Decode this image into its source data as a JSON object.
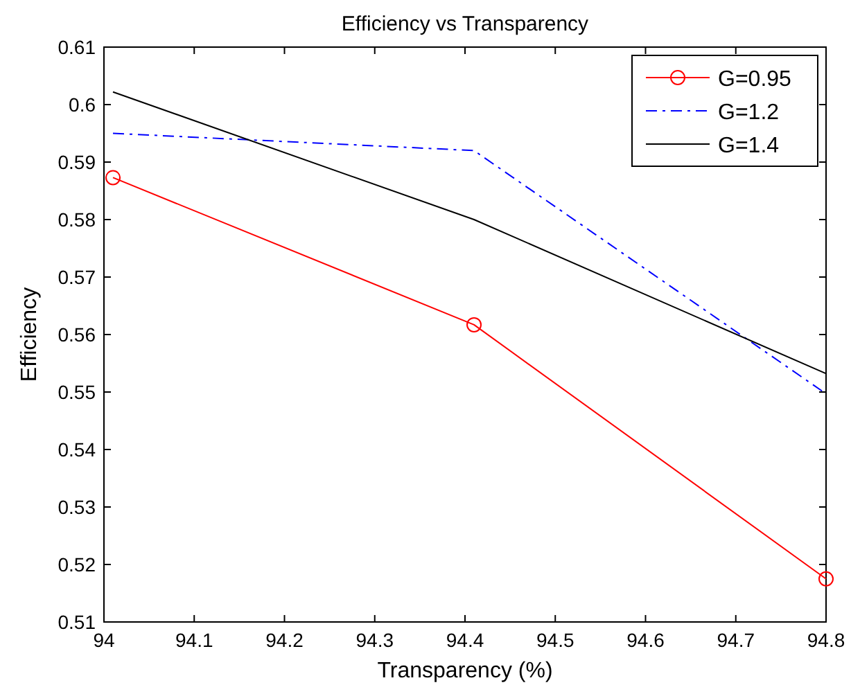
{
  "chart_data": {
    "type": "line",
    "title": "Efficiency vs Transparency",
    "xlabel": "Transparency (%)",
    "ylabel": "Efficiency",
    "xlim": [
      94,
      94.8
    ],
    "xticks": [
      94,
      94.1,
      94.2,
      94.3,
      94.4,
      94.5,
      94.6,
      94.7,
      94.8
    ],
    "ylim": [
      0.51,
      0.61
    ],
    "yticks": [
      0.51,
      0.52,
      0.53,
      0.54,
      0.55,
      0.56,
      0.57,
      0.58,
      0.59,
      0.6,
      0.61
    ],
    "grid": false,
    "legend": "top right",
    "series": [
      {
        "name": "G=0.95",
        "color": "#ff0000",
        "marker": "circle",
        "line_style": "solid",
        "x": [
          94.01,
          94.41,
          94.8
        ],
        "values": [
          0.5873,
          0.5617,
          0.5175
        ]
      },
      {
        "name": "G=1.2",
        "color": "#0000ff",
        "marker": "none",
        "line_style": "dashdot",
        "x": [
          94.01,
          94.41,
          94.8
        ],
        "values": [
          0.595,
          0.592,
          0.5497
        ]
      },
      {
        "name": "G=1.4",
        "color": "#000000",
        "marker": "none",
        "line_style": "solid",
        "x": [
          94.01,
          94.41,
          94.8
        ],
        "values": [
          0.6022,
          0.58,
          0.5532
        ]
      }
    ]
  }
}
